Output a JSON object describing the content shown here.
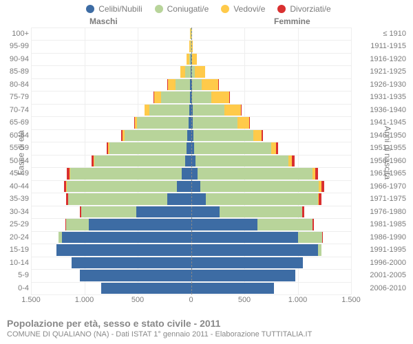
{
  "chart": {
    "type": "population-pyramid",
    "legend": [
      {
        "label": "Celibi/Nubili",
        "color": "#3d6ca4"
      },
      {
        "label": "Coniugati/e",
        "color": "#b8d49a"
      },
      {
        "label": "Vedovi/e",
        "color": "#ffca4a"
      },
      {
        "label": "Divorziati/e",
        "color": "#d93030"
      }
    ],
    "top_labels": {
      "male": "Maschi",
      "female": "Femmine"
    },
    "axis_labels": {
      "left": "Fasce di età",
      "right": "Anni di nascita"
    },
    "x_ticks": [
      -1500,
      -1000,
      -500,
      0,
      500,
      1000,
      1500
    ],
    "x_tick_labels": [
      "1.500",
      "1.000",
      "500",
      "0",
      "500",
      "1.000",
      "1.500"
    ],
    "x_min": -1500,
    "x_max": 1500,
    "age_groups": [
      "0-4",
      "5-9",
      "10-14",
      "15-19",
      "20-24",
      "25-29",
      "30-34",
      "35-39",
      "40-44",
      "45-49",
      "50-54",
      "55-59",
      "60-64",
      "65-69",
      "70-74",
      "75-79",
      "80-84",
      "85-89",
      "90-94",
      "95-99",
      "100+"
    ],
    "birth_years": [
      "2006-2010",
      "2001-2005",
      "1996-2000",
      "1991-1995",
      "1986-1990",
      "1981-1985",
      "1976-1980",
      "1971-1975",
      "1966-1970",
      "1961-1965",
      "1956-1960",
      "1951-1955",
      "1946-1950",
      "1941-1945",
      "1936-1940",
      "1931-1935",
      "1926-1930",
      "1921-1925",
      "1916-1920",
      "1911-1915",
      "≤ 1910"
    ],
    "male": [
      {
        "cel": 840,
        "con": 0,
        "ved": 0,
        "div": 0
      },
      {
        "cel": 1040,
        "con": 0,
        "ved": 0,
        "div": 0
      },
      {
        "cel": 1120,
        "con": 0,
        "ved": 0,
        "div": 0
      },
      {
        "cel": 1260,
        "con": 0,
        "ved": 0,
        "div": 0
      },
      {
        "cel": 1210,
        "con": 30,
        "ved": 0,
        "div": 0
      },
      {
        "cel": 960,
        "con": 210,
        "ved": 0,
        "div": 5
      },
      {
        "cel": 510,
        "con": 520,
        "ved": 0,
        "div": 10
      },
      {
        "cel": 220,
        "con": 930,
        "ved": 5,
        "div": 15
      },
      {
        "cel": 135,
        "con": 1030,
        "ved": 5,
        "div": 20
      },
      {
        "cel": 90,
        "con": 1040,
        "ved": 10,
        "div": 25
      },
      {
        "cel": 55,
        "con": 850,
        "ved": 10,
        "div": 20
      },
      {
        "cel": 45,
        "con": 720,
        "ved": 10,
        "div": 18
      },
      {
        "cel": 35,
        "con": 590,
        "ved": 15,
        "div": 15
      },
      {
        "cel": 25,
        "con": 480,
        "ved": 20,
        "div": 8
      },
      {
        "cel": 18,
        "con": 370,
        "ved": 45,
        "div": 5
      },
      {
        "cel": 12,
        "con": 270,
        "ved": 65,
        "div": 3
      },
      {
        "cel": 8,
        "con": 140,
        "ved": 70,
        "div": 2
      },
      {
        "cel": 3,
        "con": 50,
        "ved": 45,
        "div": 0
      },
      {
        "cel": 1,
        "con": 15,
        "ved": 25,
        "div": 0
      },
      {
        "cel": 0,
        "con": 5,
        "ved": 10,
        "div": 0
      },
      {
        "cel": 0,
        "con": 2,
        "ved": 5,
        "div": 0
      }
    ],
    "female": [
      {
        "cel": 780,
        "con": 0,
        "ved": 0,
        "div": 0
      },
      {
        "cel": 980,
        "con": 0,
        "ved": 0,
        "div": 0
      },
      {
        "cel": 1050,
        "con": 0,
        "ved": 0,
        "div": 0
      },
      {
        "cel": 1190,
        "con": 30,
        "ved": 0,
        "div": 0
      },
      {
        "cel": 1000,
        "con": 230,
        "ved": 0,
        "div": 5
      },
      {
        "cel": 620,
        "con": 520,
        "ved": 2,
        "div": 8
      },
      {
        "cel": 270,
        "con": 770,
        "ved": 5,
        "div": 15
      },
      {
        "cel": 140,
        "con": 1050,
        "ved": 10,
        "div": 25
      },
      {
        "cel": 85,
        "con": 1115,
        "ved": 20,
        "div": 30
      },
      {
        "cel": 60,
        "con": 1080,
        "ved": 25,
        "div": 28
      },
      {
        "cel": 40,
        "con": 870,
        "ved": 35,
        "div": 25
      },
      {
        "cel": 30,
        "con": 720,
        "ved": 50,
        "div": 15
      },
      {
        "cel": 22,
        "con": 560,
        "ved": 80,
        "div": 10
      },
      {
        "cel": 18,
        "con": 420,
        "ved": 105,
        "div": 7
      },
      {
        "cel": 15,
        "con": 300,
        "ved": 150,
        "div": 5
      },
      {
        "cel": 10,
        "con": 180,
        "ved": 165,
        "div": 3
      },
      {
        "cel": 7,
        "con": 90,
        "ved": 160,
        "div": 1
      },
      {
        "cel": 4,
        "con": 30,
        "ved": 100,
        "div": 0
      },
      {
        "cel": 2,
        "con": 8,
        "ved": 45,
        "div": 0
      },
      {
        "cel": 1,
        "con": 2,
        "ved": 15,
        "div": 0
      },
      {
        "cel": 0,
        "con": 1,
        "ved": 6,
        "div": 0
      }
    ],
    "colors": {
      "cel": "#3d6ca4",
      "con": "#b8d49a",
      "ved": "#ffca4a",
      "div": "#d93030"
    },
    "grid_color": "#eeeeee"
  },
  "footer": {
    "title": "Popolazione per età, sesso e stato civile - 2011",
    "subtitle": "COMUNE DI QUALIANO (NA) - Dati ISTAT 1° gennaio 2011 - Elaborazione TUTTITALIA.IT"
  }
}
